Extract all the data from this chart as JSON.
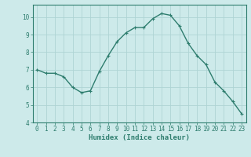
{
  "x": [
    0,
    1,
    2,
    3,
    4,
    5,
    6,
    7,
    8,
    9,
    10,
    11,
    12,
    13,
    14,
    15,
    16,
    17,
    18,
    19,
    20,
    21,
    22,
    23
  ],
  "y": [
    7.0,
    6.8,
    6.8,
    6.6,
    6.0,
    5.7,
    5.8,
    6.9,
    7.8,
    8.6,
    9.1,
    9.4,
    9.4,
    9.9,
    10.2,
    10.1,
    9.5,
    8.5,
    7.8,
    7.3,
    6.3,
    5.8,
    5.2,
    4.5
  ],
  "line_color": "#2e7d6e",
  "marker": "+",
  "marker_size": 3.5,
  "bg_color": "#cdeaea",
  "grid_color": "#aed4d4",
  "xlabel": "Humidex (Indice chaleur)",
  "ylim": [
    4,
    10.7
  ],
  "xlim": [
    -0.5,
    23.5
  ],
  "yticks": [
    4,
    5,
    6,
    7,
    8,
    9,
    10
  ],
  "xticks": [
    0,
    1,
    2,
    3,
    4,
    5,
    6,
    7,
    8,
    9,
    10,
    11,
    12,
    13,
    14,
    15,
    16,
    17,
    18,
    19,
    20,
    21,
    22,
    23
  ],
  "tick_fontsize": 5.5,
  "xlabel_fontsize": 6.5,
  "line_width": 1.0,
  "marker_edge_width": 0.8
}
